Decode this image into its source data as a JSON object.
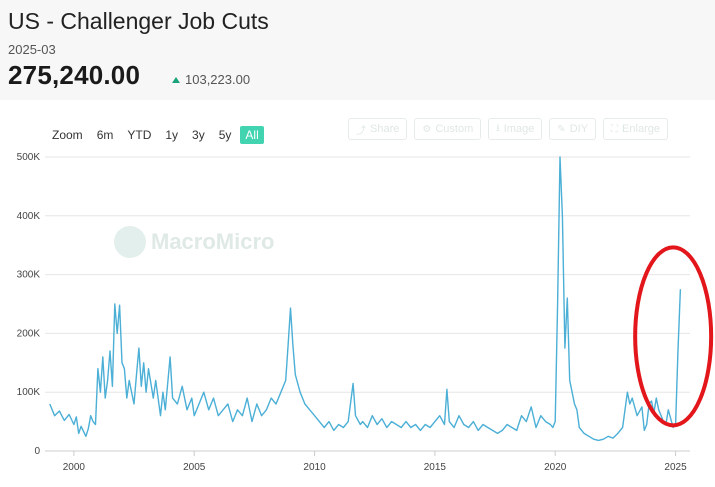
{
  "header": {
    "title": "US - Challenger Job Cuts",
    "date": "2025-03",
    "value": "275,240.00",
    "change": "103,223.00"
  },
  "range_selector": {
    "zoom_label": "Zoom",
    "buttons": [
      "6m",
      "YTD",
      "1y",
      "3y",
      "5y",
      "All"
    ],
    "active": "All"
  },
  "toolbar": {
    "share": "Share",
    "custom": "Custom",
    "image": "Image",
    "diy": "DIY",
    "enlarge": "Enlarge"
  },
  "watermark": "MacroMicro",
  "colors": {
    "line": "#4bafd6",
    "accent": "#42d3b1",
    "highlight": "#e3161b",
    "up": "#1aa37a"
  },
  "chart_data": {
    "type": "line",
    "title": "",
    "xlabel": "",
    "ylabel": "",
    "ylim": [
      0,
      500000
    ],
    "xlim": [
      1998.8,
      2025.6
    ],
    "y_ticks": [
      "0",
      "100K",
      "200K",
      "300K",
      "400K",
      "500K"
    ],
    "x_ticks": [
      "2000",
      "2005",
      "2010",
      "2015",
      "2020",
      "2025"
    ],
    "series": [
      {
        "points": [
          [
            1999.0,
            80000
          ],
          [
            1999.2,
            60000
          ],
          [
            1999.4,
            68000
          ],
          [
            1999.6,
            52000
          ],
          [
            1999.8,
            62000
          ],
          [
            2000.0,
            45000
          ],
          [
            2000.1,
            58000
          ],
          [
            2000.2,
            30000
          ],
          [
            2000.3,
            42000
          ],
          [
            2000.5,
            25000
          ],
          [
            2000.6,
            38000
          ],
          [
            2000.7,
            60000
          ],
          [
            2000.8,
            50000
          ],
          [
            2000.9,
            45000
          ],
          [
            2001.0,
            140000
          ],
          [
            2001.1,
            100000
          ],
          [
            2001.2,
            160000
          ],
          [
            2001.3,
            90000
          ],
          [
            2001.4,
            120000
          ],
          [
            2001.5,
            170000
          ],
          [
            2001.6,
            110000
          ],
          [
            2001.7,
            250000
          ],
          [
            2001.8,
            200000
          ],
          [
            2001.9,
            248000
          ],
          [
            2002.0,
            150000
          ],
          [
            2002.1,
            140000
          ],
          [
            2002.2,
            90000
          ],
          [
            2002.3,
            120000
          ],
          [
            2002.5,
            80000
          ],
          [
            2002.6,
            130000
          ],
          [
            2002.7,
            175000
          ],
          [
            2002.8,
            110000
          ],
          [
            2002.9,
            150000
          ],
          [
            2003.0,
            100000
          ],
          [
            2003.1,
            140000
          ],
          [
            2003.3,
            90000
          ],
          [
            2003.4,
            120000
          ],
          [
            2003.6,
            60000
          ],
          [
            2003.7,
            100000
          ],
          [
            2003.8,
            70000
          ],
          [
            2004.0,
            160000
          ],
          [
            2004.1,
            90000
          ],
          [
            2004.3,
            80000
          ],
          [
            2004.5,
            110000
          ],
          [
            2004.7,
            70000
          ],
          [
            2004.9,
            90000
          ],
          [
            2005.0,
            60000
          ],
          [
            2005.2,
            80000
          ],
          [
            2005.4,
            100000
          ],
          [
            2005.6,
            70000
          ],
          [
            2005.8,
            90000
          ],
          [
            2006.0,
            60000
          ],
          [
            2006.2,
            70000
          ],
          [
            2006.4,
            80000
          ],
          [
            2006.6,
            50000
          ],
          [
            2006.8,
            70000
          ],
          [
            2007.0,
            60000
          ],
          [
            2007.2,
            90000
          ],
          [
            2007.4,
            50000
          ],
          [
            2007.6,
            80000
          ],
          [
            2007.8,
            60000
          ],
          [
            2008.0,
            70000
          ],
          [
            2008.2,
            90000
          ],
          [
            2008.4,
            80000
          ],
          [
            2008.6,
            100000
          ],
          [
            2008.8,
            120000
          ],
          [
            2008.9,
            180000
          ],
          [
            2009.0,
            243000
          ],
          [
            2009.1,
            180000
          ],
          [
            2009.2,
            130000
          ],
          [
            2009.4,
            100000
          ],
          [
            2009.6,
            80000
          ],
          [
            2009.8,
            70000
          ],
          [
            2010.0,
            60000
          ],
          [
            2010.2,
            50000
          ],
          [
            2010.4,
            40000
          ],
          [
            2010.6,
            50000
          ],
          [
            2010.8,
            35000
          ],
          [
            2011.0,
            45000
          ],
          [
            2011.2,
            40000
          ],
          [
            2011.4,
            50000
          ],
          [
            2011.6,
            115000
          ],
          [
            2011.7,
            60000
          ],
          [
            2011.9,
            45000
          ],
          [
            2012.0,
            50000
          ],
          [
            2012.2,
            40000
          ],
          [
            2012.4,
            60000
          ],
          [
            2012.6,
            45000
          ],
          [
            2012.8,
            55000
          ],
          [
            2013.0,
            40000
          ],
          [
            2013.2,
            50000
          ],
          [
            2013.4,
            45000
          ],
          [
            2013.6,
            40000
          ],
          [
            2013.8,
            50000
          ],
          [
            2014.0,
            40000
          ],
          [
            2014.2,
            45000
          ],
          [
            2014.4,
            35000
          ],
          [
            2014.6,
            45000
          ],
          [
            2014.8,
            40000
          ],
          [
            2015.0,
            50000
          ],
          [
            2015.2,
            60000
          ],
          [
            2015.4,
            45000
          ],
          [
            2015.5,
            105000
          ],
          [
            2015.6,
            50000
          ],
          [
            2015.8,
            40000
          ],
          [
            2016.0,
            60000
          ],
          [
            2016.2,
            45000
          ],
          [
            2016.4,
            40000
          ],
          [
            2016.6,
            50000
          ],
          [
            2016.8,
            35000
          ],
          [
            2017.0,
            45000
          ],
          [
            2017.2,
            40000
          ],
          [
            2017.4,
            35000
          ],
          [
            2017.6,
            30000
          ],
          [
            2017.8,
            35000
          ],
          [
            2018.0,
            45000
          ],
          [
            2018.2,
            40000
          ],
          [
            2018.4,
            35000
          ],
          [
            2018.6,
            60000
          ],
          [
            2018.8,
            50000
          ],
          [
            2019.0,
            75000
          ],
          [
            2019.2,
            40000
          ],
          [
            2019.4,
            60000
          ],
          [
            2019.6,
            50000
          ],
          [
            2019.8,
            45000
          ],
          [
            2019.9,
            40000
          ],
          [
            2020.0,
            50000
          ],
          [
            2020.1,
            250000
          ],
          [
            2020.2,
            500000
          ],
          [
            2020.3,
            400000
          ],
          [
            2020.4,
            175000
          ],
          [
            2020.5,
            260000
          ],
          [
            2020.6,
            120000
          ],
          [
            2020.7,
            100000
          ],
          [
            2020.8,
            80000
          ],
          [
            2020.9,
            70000
          ],
          [
            2021.0,
            40000
          ],
          [
            2021.2,
            30000
          ],
          [
            2021.4,
            25000
          ],
          [
            2021.6,
            20000
          ],
          [
            2021.8,
            18000
          ],
          [
            2022.0,
            20000
          ],
          [
            2022.2,
            25000
          ],
          [
            2022.4,
            22000
          ],
          [
            2022.6,
            30000
          ],
          [
            2022.8,
            40000
          ],
          [
            2023.0,
            100000
          ],
          [
            2023.1,
            80000
          ],
          [
            2023.2,
            90000
          ],
          [
            2023.4,
            60000
          ],
          [
            2023.6,
            75000
          ],
          [
            2023.7,
            35000
          ],
          [
            2023.8,
            45000
          ],
          [
            2023.9,
            80000
          ],
          [
            2024.0,
            85000
          ],
          [
            2024.1,
            65000
          ],
          [
            2024.2,
            90000
          ],
          [
            2024.3,
            70000
          ],
          [
            2024.4,
            60000
          ],
          [
            2024.5,
            50000
          ],
          [
            2024.6,
            45000
          ],
          [
            2024.7,
            70000
          ],
          [
            2024.8,
            55000
          ],
          [
            2024.9,
            40000
          ],
          [
            2025.0,
            45000
          ],
          [
            2025.1,
            172000
          ],
          [
            2025.2,
            275240
          ]
        ]
      }
    ],
    "annotations": [
      {
        "type": "ellipse",
        "note": "highlight around latest spike",
        "x_center": 2024.9,
        "y_center": 195000
      }
    ],
    "grid": "horizontal"
  }
}
